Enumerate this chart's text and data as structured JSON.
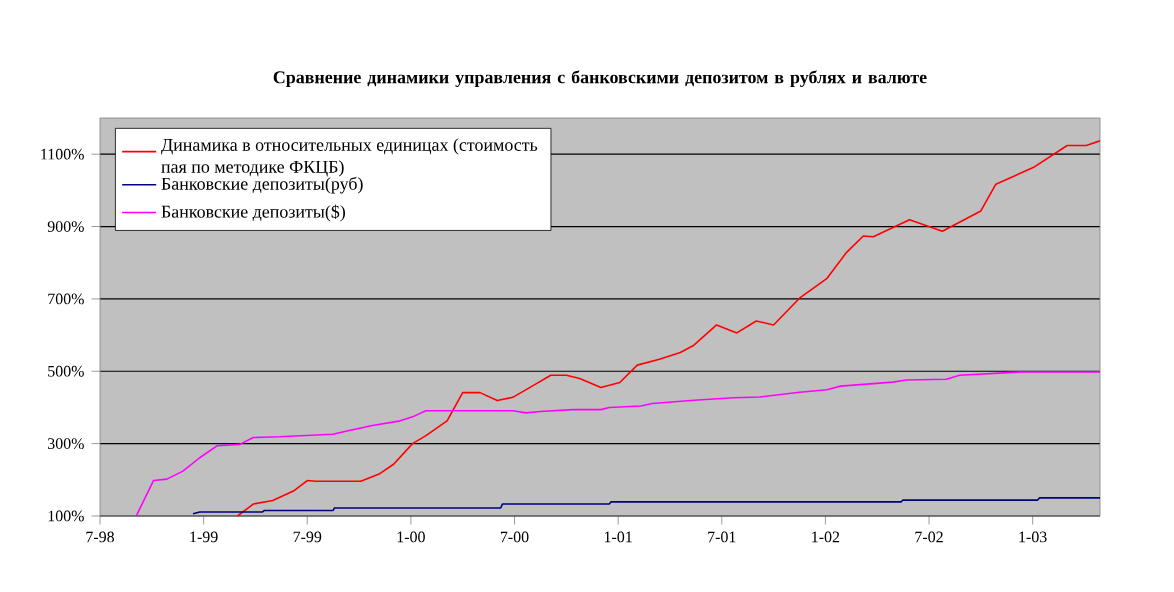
{
  "chart_data": {
    "type": "line",
    "title": "Сравнение динамики управления с банковскими депозитом в рублях и валюте",
    "xlim": [
      "1998-07-01",
      "2003-04-28"
    ],
    "xticks": [
      {
        "value": "1998-07",
        "label": "7-98"
      },
      {
        "value": "1999-01",
        "label": "1-99"
      },
      {
        "value": "1999-07",
        "label": "7-99"
      },
      {
        "value": "2000-01",
        "label": "1-00"
      },
      {
        "value": "2000-07",
        "label": "7-00"
      },
      {
        "value": "2001-01",
        "label": "1-01"
      },
      {
        "value": "2001-07",
        "label": "7-01"
      },
      {
        "value": "2002-01",
        "label": "1-02"
      },
      {
        "value": "2002-07",
        "label": "7-02"
      },
      {
        "value": "2003-01",
        "label": "1-03"
      }
    ],
    "ylim": [
      100,
      1200
    ],
    "yticks": [
      {
        "value": 100,
        "label": "100%"
      },
      {
        "value": 300,
        "label": "300%"
      },
      {
        "value": 500,
        "label": "500%"
      },
      {
        "value": 700,
        "label": "700%"
      },
      {
        "value": 900,
        "label": "900%"
      },
      {
        "value": 1100,
        "label": "1100%"
      }
    ],
    "grid": "y",
    "legend": "top left",
    "series": [
      {
        "name": "Динамика в относительных единицах (стоимость пая по методике ФКЦБ)",
        "color": "#ff0000",
        "x": [
          "1999-02-28",
          "1999-03-28",
          "1999-05-01",
          "1999-06-07",
          "1999-07-01",
          "1999-07-16",
          "1999-10-04",
          "1999-11-07",
          "1999-12-01",
          "2000-01-04",
          "2000-01-28",
          "2000-03-04",
          "2000-04-01",
          "2000-05-01",
          "2000-06-01",
          "2000-06-28",
          "2000-08-04",
          "2000-09-04",
          "2000-10-01",
          "2000-10-25",
          "2000-12-01",
          "2001-01-04",
          "2001-02-04",
          "2001-03-13",
          "2001-04-19",
          "2001-05-13",
          "2001-06-22",
          "2001-07-28",
          "2001-09-01",
          "2001-10-01",
          "2001-11-16",
          "2002-01-04",
          "2002-02-07",
          "2002-03-07",
          "2002-03-25",
          "2002-05-28",
          "2002-07-25",
          "2002-10-01",
          "2002-10-28",
          "2003-01-02",
          "2003-03-01",
          "2003-04-04",
          "2003-04-28"
        ],
        "values": [
          100,
          133,
          143,
          169,
          198,
          196,
          196,
          217,
          243,
          300,
          322,
          363,
          441,
          441,
          419,
          428,
          461,
          489,
          489,
          480,
          455,
          469,
          517,
          533,
          552,
          572,
          628,
          606,
          639,
          628,
          702,
          757,
          828,
          874,
          872,
          919,
          887,
          943,
          1017,
          1063,
          1124,
          1124,
          1137
        ]
      },
      {
        "name": "Банковские депозиты(руб)",
        "color": "#000080",
        "x": [
          "1998-12-13",
          "1998-12-25",
          "1999-04-13",
          "1999-04-16",
          "1999-08-16",
          "1999-08-19",
          "2000-06-07",
          "2000-06-10",
          "2000-12-16",
          "2000-12-19",
          "2002-05-13",
          "2002-05-16",
          "2003-01-10",
          "2003-01-13",
          "2003-04-28"
        ],
        "values": [
          106,
          111,
          111,
          115,
          115,
          122,
          122,
          133,
          133,
          139,
          139,
          144,
          144,
          150,
          150
        ]
      },
      {
        "name": "Банковские депозиты($)",
        "color": "#ff00ff",
        "x": [
          "1998-09-04",
          "1998-10-04",
          "1998-10-28",
          "1998-11-25",
          "1998-12-25",
          "1999-01-25",
          "1999-03-04",
          "1999-03-28",
          "1999-05-13",
          "1999-06-19",
          "1999-08-16",
          "1999-09-10",
          "1999-10-25",
          "1999-12-13",
          "2000-01-04",
          "2000-01-28",
          "2000-06-28",
          "2000-07-22",
          "2000-08-16",
          "2000-10-13",
          "2000-12-01",
          "2000-12-16",
          "2001-02-10",
          "2001-02-28",
          "2001-05-13",
          "2001-07-22",
          "2001-09-07",
          "2001-11-16",
          "2002-01-04",
          "2002-01-28",
          "2002-04-28",
          "2002-05-22",
          "2002-08-01",
          "2002-08-25",
          "2002-12-10",
          "2003-04-28"
        ],
        "values": [
          100,
          198,
          202,
          224,
          261,
          294,
          298,
          317,
          319,
          322,
          326,
          335,
          350,
          363,
          374,
          391,
          391,
          385,
          389,
          394,
          394,
          400,
          404,
          411,
          420,
          427,
          429,
          442,
          449,
          459,
          470,
          476,
          478,
          489,
          498,
          498
        ]
      }
    ]
  }
}
